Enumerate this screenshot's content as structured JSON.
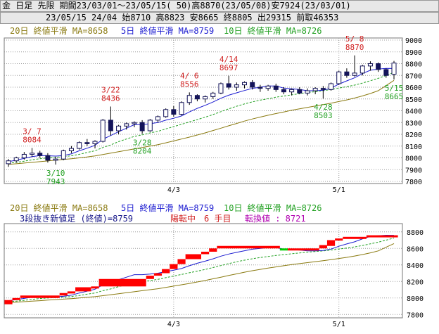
{
  "header": {
    "line1": "金 日足 先限 期間23/03/01～23/05/15( 50)高8870(23/05/08)安7924(23/03/01)",
    "line2": "23/05/15 24/04 始8710 高8823 安8665 終8805 出29315 前取46353"
  },
  "legend": {
    "ma20": "20日 終値平滑 MA=8658",
    "ma5": "5日 終値平滑 MA=8759",
    "ma10": "10日 終値平滑 MA=8726"
  },
  "renko": {
    "label_main": "3段抜き新値足 (終値)=8759",
    "label_state": "陽転中",
    "label_count": "6 手目",
    "label_switch": "転換値 : 8721"
  },
  "colors": {
    "ma5": "#1a1ad0",
    "ma10": "#21a021",
    "ma20": "#8a7a10",
    "annot_high": "#d02020",
    "annot_low": "#21a021",
    "renko_up": "#ff0000",
    "renko_down": "#00cc00",
    "grid": "#9a9a9a"
  },
  "chart_data": [
    {
      "type": "candlestick",
      "ylim": [
        7800,
        9000
      ],
      "yticks": [
        7800,
        7900,
        8000,
        8100,
        8200,
        8300,
        8400,
        8500,
        8600,
        8700,
        8800,
        8900,
        9000
      ],
      "xticks": [
        {
          "i": 21,
          "label": "4/3"
        },
        {
          "i": 42,
          "label": "5/1"
        }
      ],
      "annotations": [
        {
          "i": 3,
          "price": 8084,
          "date": "3/ 7",
          "value": "8084",
          "kind": "high"
        },
        {
          "i": 6,
          "price": 7943,
          "date": "3/10",
          "value": "7943",
          "kind": "low"
        },
        {
          "i": 13,
          "price": 8436,
          "date": "3/22",
          "value": "8436",
          "kind": "high"
        },
        {
          "i": 17,
          "price": 8204,
          "date": "3/28",
          "value": "8204",
          "kind": "low"
        },
        {
          "i": 23,
          "price": 8556,
          "date": "4/ 6",
          "value": "8556",
          "kind": "high"
        },
        {
          "i": 28,
          "price": 8697,
          "date": "4/14",
          "value": "8697",
          "kind": "high"
        },
        {
          "i": 40,
          "price": 8503,
          "date": "4/28",
          "value": "8503",
          "kind": "low"
        },
        {
          "i": 44,
          "price": 8870,
          "date": "5/ 8",
          "value": "8870",
          "kind": "high"
        },
        {
          "i": 49,
          "price": 8665,
          "date": "5/15",
          "value": "8665",
          "kind": "low"
        }
      ],
      "candles": [
        [
          7950,
          7990,
          7924,
          7975
        ],
        [
          7975,
          8010,
          7960,
          8000
        ],
        [
          8000,
          8050,
          7985,
          8030
        ],
        [
          8030,
          8084,
          8010,
          8040
        ],
        [
          8040,
          8060,
          8000,
          8020
        ],
        [
          8020,
          8040,
          7960,
          7980
        ],
        [
          7980,
          8010,
          7943,
          7990
        ],
        [
          7990,
          8070,
          7980,
          8060
        ],
        [
          8060,
          8100,
          8040,
          8080
        ],
        [
          8080,
          8140,
          8070,
          8130
        ],
        [
          8130,
          8160,
          8100,
          8120
        ],
        [
          8120,
          8150,
          8080,
          8140
        ],
        [
          8140,
          8330,
          8130,
          8320
        ],
        [
          8320,
          8436,
          8190,
          8230
        ],
        [
          8230,
          8280,
          8200,
          8270
        ],
        [
          8270,
          8300,
          8240,
          8290
        ],
        [
          8290,
          8310,
          8260,
          8300
        ],
        [
          8300,
          8320,
          8204,
          8230
        ],
        [
          8230,
          8330,
          8220,
          8320
        ],
        [
          8320,
          8360,
          8300,
          8350
        ],
        [
          8350,
          8420,
          8340,
          8410
        ],
        [
          8410,
          8440,
          8350,
          8370
        ],
        [
          8370,
          8480,
          8360,
          8470
        ],
        [
          8470,
          8556,
          8450,
          8530
        ],
        [
          8530,
          8540,
          8480,
          8500
        ],
        [
          8500,
          8530,
          8470,
          8520
        ],
        [
          8520,
          8560,
          8500,
          8550
        ],
        [
          8550,
          8640,
          8540,
          8630
        ],
        [
          8630,
          8697,
          8580,
          8600
        ],
        [
          8600,
          8640,
          8570,
          8620
        ],
        [
          8620,
          8650,
          8590,
          8640
        ],
        [
          8640,
          8660,
          8580,
          8600
        ],
        [
          8600,
          8620,
          8560,
          8590
        ],
        [
          8590,
          8620,
          8570,
          8610
        ],
        [
          8610,
          8630,
          8560,
          8580
        ],
        [
          8580,
          8600,
          8540,
          8560
        ],
        [
          8560,
          8590,
          8530,
          8580
        ],
        [
          8580,
          8600,
          8540,
          8550
        ],
        [
          8550,
          8590,
          8530,
          8570
        ],
        [
          8570,
          8600,
          8540,
          8590
        ],
        [
          8590,
          8610,
          8503,
          8580
        ],
        [
          8580,
          8640,
          8570,
          8630
        ],
        [
          8630,
          8740,
          8620,
          8730
        ],
        [
          8730,
          8760,
          8680,
          8700
        ],
        [
          8700,
          8870,
          8690,
          8720
        ],
        [
          8720,
          8790,
          8700,
          8780
        ],
        [
          8780,
          8820,
          8740,
          8800
        ],
        [
          8800,
          8810,
          8730,
          8750
        ],
        [
          8750,
          8760,
          8680,
          8700
        ],
        [
          8710,
          8823,
          8665,
          8805
        ]
      ],
      "ma5": [
        7968,
        7980,
        7995,
        8010,
        8020,
        8018,
        8015,
        8020,
        8034,
        8060,
        8082,
        8106,
        8158,
        8190,
        8222,
        8252,
        8282,
        8282,
        8290,
        8300,
        8320,
        8336,
        8356,
        8390,
        8420,
        8446,
        8474,
        8506,
        8532,
        8552,
        8572,
        8590,
        8600,
        8610,
        8610,
        8592,
        8586,
        8580,
        8570,
        8570,
        8574,
        8592,
        8626,
        8654,
        8680,
        8716,
        8744,
        8754,
        8760,
        8759
      ],
      "ma10": [
        7955,
        7962,
        7972,
        7983,
        7993,
        8000,
        8005,
        8010,
        8018,
        8030,
        8046,
        8060,
        8088,
        8110,
        8138,
        8160,
        8182,
        8195,
        8212,
        8225,
        8246,
        8265,
        8285,
        8305,
        8325,
        8345,
        8368,
        8392,
        8416,
        8438,
        8458,
        8475,
        8490,
        8502,
        8515,
        8525,
        8535,
        8545,
        8555,
        8562,
        8570,
        8580,
        8592,
        8605,
        8618,
        8635,
        8655,
        8675,
        8700,
        8726
      ],
      "ma20": [
        7945,
        7950,
        7956,
        7962,
        7968,
        7974,
        7980,
        7986,
        7992,
        8000,
        8008,
        8016,
        8028,
        8040,
        8052,
        8064,
        8076,
        8088,
        8100,
        8112,
        8128,
        8144,
        8160,
        8176,
        8194,
        8212,
        8232,
        8252,
        8272,
        8292,
        8312,
        8330,
        8346,
        8362,
        8376,
        8390,
        8404,
        8416,
        8428,
        8440,
        8452,
        8464,
        8478,
        8492,
        8508,
        8526,
        8546,
        8570,
        8614,
        8658
      ]
    },
    {
      "type": "renko",
      "ylim": [
        7760,
        8900
      ],
      "yticks": [
        7800,
        8000,
        8200,
        8400,
        8600,
        8800
      ],
      "xticks": [
        {
          "i": 21,
          "label": "4/3"
        },
        {
          "i": 42,
          "label": "5/1"
        }
      ],
      "bricks": [
        {
          "i0": 0,
          "i1": 1,
          "lo": 7924,
          "hi": 7975,
          "dir": "up"
        },
        {
          "i0": 1,
          "i1": 2,
          "lo": 7975,
          "hi": 8000,
          "dir": "up"
        },
        {
          "i0": 2,
          "i1": 7,
          "lo": 8000,
          "hi": 8030,
          "dir": "up"
        },
        {
          "i0": 7,
          "i1": 8,
          "lo": 8030,
          "hi": 8060,
          "dir": "up"
        },
        {
          "i0": 8,
          "i1": 9,
          "lo": 8060,
          "hi": 8080,
          "dir": "up"
        },
        {
          "i0": 9,
          "i1": 11,
          "lo": 8080,
          "hi": 8130,
          "dir": "up"
        },
        {
          "i0": 11,
          "i1": 12,
          "lo": 8130,
          "hi": 8140,
          "dir": "up"
        },
        {
          "i0": 12,
          "i1": 18,
          "lo": 8140,
          "hi": 8230,
          "dir": "up"
        },
        {
          "i0": 18,
          "i1": 19,
          "lo": 8230,
          "hi": 8270,
          "dir": "up"
        },
        {
          "i0": 19,
          "i1": 20,
          "lo": 8270,
          "hi": 8300,
          "dir": "up"
        },
        {
          "i0": 20,
          "i1": 21,
          "lo": 8300,
          "hi": 8350,
          "dir": "up"
        },
        {
          "i0": 21,
          "i1": 22,
          "lo": 8350,
          "hi": 8410,
          "dir": "up"
        },
        {
          "i0": 22,
          "i1": 23,
          "lo": 8410,
          "hi": 8470,
          "dir": "up"
        },
        {
          "i0": 23,
          "i1": 25,
          "lo": 8470,
          "hi": 8530,
          "dir": "up"
        },
        {
          "i0": 25,
          "i1": 26,
          "lo": 8530,
          "hi": 8560,
          "dir": "up"
        },
        {
          "i0": 26,
          "i1": 27,
          "lo": 8560,
          "hi": 8600,
          "dir": "up"
        },
        {
          "i0": 27,
          "i1": 35,
          "lo": 8600,
          "hi": 8630,
          "dir": "up"
        },
        {
          "i0": 35,
          "i1": 36,
          "lo": 8580,
          "hi": 8600,
          "dir": "down"
        },
        {
          "i0": 36,
          "i1": 40,
          "lo": 8580,
          "hi": 8600,
          "dir": "up"
        },
        {
          "i0": 40,
          "i1": 41,
          "lo": 8600,
          "hi": 8640,
          "dir": "up"
        },
        {
          "i0": 41,
          "i1": 42,
          "lo": 8630,
          "hi": 8700,
          "dir": "up"
        },
        {
          "i0": 42,
          "i1": 43,
          "lo": 8700,
          "hi": 8720,
          "dir": "up"
        },
        {
          "i0": 43,
          "i1": 46,
          "lo": 8720,
          "hi": 8740,
          "dir": "up"
        },
        {
          "i0": 46,
          "i1": 50,
          "lo": 8740,
          "hi": 8759,
          "dir": "up"
        }
      ]
    }
  ]
}
